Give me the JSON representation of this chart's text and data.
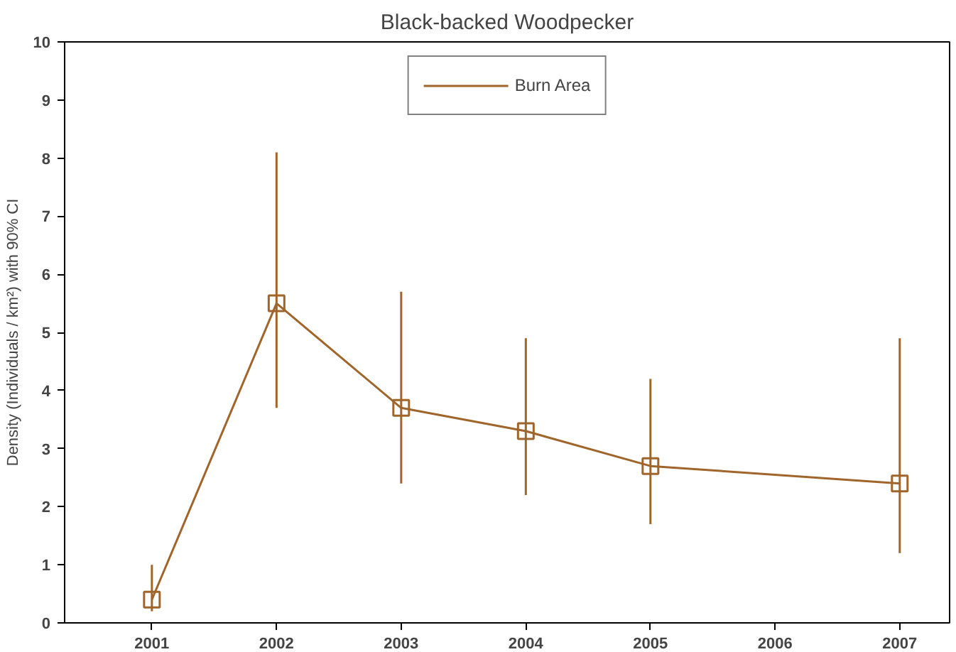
{
  "chart_data": {
    "type": "line",
    "title": "Black-backed Woodpecker",
    "ylabel": "Density (Individuals / km²) with 90% CI",
    "x": [
      2001,
      2002,
      2003,
      2004,
      2005,
      2007
    ],
    "series": [
      {
        "name": "Burn Area",
        "color": "#a0652a",
        "values": [
          0.4,
          5.5,
          3.7,
          3.3,
          2.7,
          2.4
        ],
        "errors": [
          [
            0.2,
            1.0
          ],
          [
            3.7,
            8.1
          ],
          [
            2.4,
            5.7
          ],
          [
            2.2,
            4.9
          ],
          [
            1.7,
            4.2
          ],
          [
            1.2,
            4.9
          ]
        ]
      }
    ],
    "xlim": [
      2000.3,
      2007.4
    ],
    "xticks": [
      2001,
      2002,
      2003,
      2004,
      2005,
      2006,
      2007
    ],
    "ylim": [
      0,
      10
    ],
    "yticks": [
      0,
      1,
      2,
      3,
      4,
      5,
      6,
      7,
      8,
      9,
      10
    ],
    "marker": "square",
    "line_style": "solid",
    "grid": false,
    "legend": "top"
  }
}
